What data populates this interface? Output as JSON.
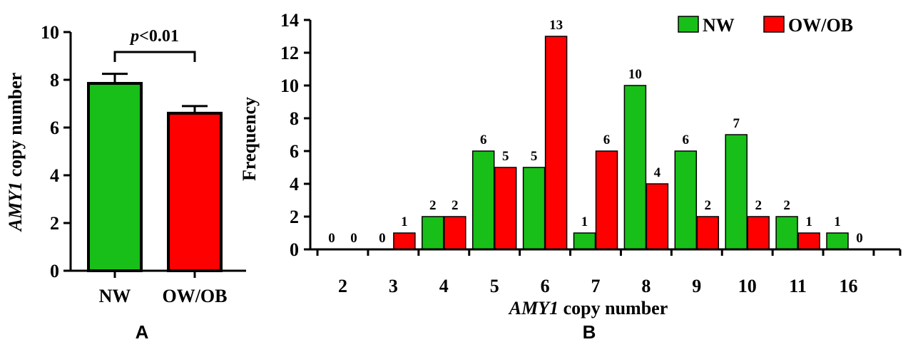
{
  "chart_data": [
    {
      "panel": "A",
      "type": "bar",
      "categories": [
        "NW",
        "OW/OB"
      ],
      "values": [
        7.85,
        6.6
      ],
      "error_upper": [
        8.25,
        6.9
      ],
      "ylabel_italic": "AMY1",
      "ylabel_rest": " copy number",
      "ylim": [
        0,
        10
      ],
      "yticks": [
        "0",
        "2",
        "4",
        "6",
        "8",
        "10"
      ],
      "annotation_italic": "p",
      "annotation_rest": "<0.01",
      "colors": [
        "#18bf18",
        "#ff0000"
      ]
    },
    {
      "panel": "B",
      "type": "bar",
      "categories": [
        "2",
        "3",
        "4",
        "5",
        "6",
        "7",
        "8",
        "9",
        "10",
        "11",
        "16"
      ],
      "series": [
        {
          "name": "NW",
          "color": "#18bf18",
          "values": [
            0,
            0,
            2,
            6,
            5,
            1,
            10,
            6,
            7,
            2,
            1
          ]
        },
        {
          "name": "OW/OB",
          "color": "#ff0000",
          "values": [
            0,
            1,
            2,
            5,
            13,
            6,
            4,
            2,
            2,
            1,
            0
          ]
        }
      ],
      "xlabel_italic": "AMY1",
      "xlabel_rest": " copy number",
      "ylabel": "Frequency",
      "ylim": [
        0,
        14
      ],
      "yticks": [
        "0",
        "2",
        "4",
        "6",
        "8",
        "10",
        "12",
        "14"
      ],
      "legend_position": "top-right",
      "data_labels": true
    }
  ]
}
